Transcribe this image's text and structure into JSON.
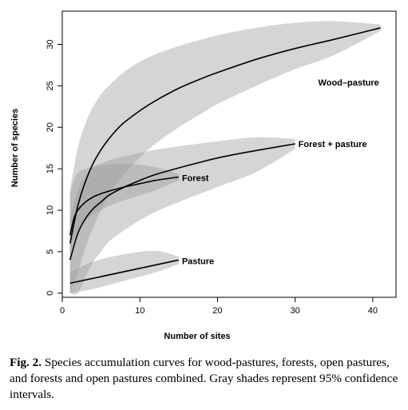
{
  "chart_data": {
    "type": "line",
    "xlabel": "Number of sites",
    "ylabel": "Number of species",
    "xlim": [
      0,
      43
    ],
    "ylim": [
      -0.5,
      34
    ],
    "xticks": [
      0,
      10,
      20,
      30,
      40
    ],
    "yticks": [
      0,
      5,
      10,
      15,
      20,
      25,
      30
    ],
    "grid": false,
    "legend": "none",
    "series": [
      {
        "name": "Wood–pasture",
        "x": [
          1,
          2,
          3,
          4,
          5,
          6,
          7,
          8,
          10,
          12,
          15,
          18,
          20,
          25,
          30,
          35,
          41
        ],
        "y": [
          6,
          10.5,
          13.5,
          15.7,
          17.3,
          18.6,
          19.7,
          20.6,
          22.0,
          23.2,
          24.7,
          25.9,
          26.6,
          28.2,
          29.5,
          30.6,
          32
        ],
        "ci_lower": [
          0,
          2.5,
          5.5,
          8.0,
          10.0,
          11.8,
          13.2,
          14.4,
          16.4,
          18.0,
          20.0,
          21.7,
          22.8,
          25.0,
          27.0,
          28.7,
          31.6
        ],
        "ci_upper": [
          12.5,
          17.5,
          20.5,
          22.5,
          24.0,
          25.0,
          25.9,
          26.7,
          27.9,
          28.8,
          29.8,
          30.6,
          31.1,
          32.0,
          32.6,
          32.8,
          32.4
        ]
      },
      {
        "name": "Forest + pasture",
        "x": [
          1,
          2,
          3,
          4,
          5,
          6,
          8,
          10,
          12,
          15,
          20,
          25,
          30
        ],
        "y": [
          4,
          7.2,
          9.0,
          10.2,
          11.0,
          11.8,
          12.8,
          13.6,
          14.3,
          15.1,
          16.3,
          17.2,
          18
        ],
        "ci_lower": [
          0,
          0,
          2.0,
          3.8,
          5.0,
          6.2,
          7.6,
          8.8,
          9.8,
          11.0,
          12.8,
          14.6,
          17.4
        ],
        "ci_upper": [
          9.0,
          12.5,
          14.2,
          15.2,
          15.6,
          16.0,
          16.5,
          16.9,
          17.3,
          17.7,
          18.3,
          18.8,
          18.6
        ]
      },
      {
        "name": "Forest",
        "x": [
          1,
          1.5,
          2,
          3,
          4,
          5,
          6,
          8,
          10,
          12,
          15
        ],
        "y": [
          7,
          9.0,
          10.0,
          11.0,
          11.6,
          12.0,
          12.3,
          12.8,
          13.2,
          13.6,
          14.0
        ],
        "ci_lower": [
          5.0,
          6.5,
          7.5,
          8.8,
          9.5,
          10.0,
          10.5,
          11.2,
          11.8,
          12.4,
          13.6
        ],
        "ci_upper": [
          12.0,
          13.6,
          14.5,
          15.0,
          15.2,
          15.4,
          15.5,
          15.6,
          15.5,
          15.2,
          14.4
        ]
      },
      {
        "name": "Pasture",
        "x": [
          1,
          15
        ],
        "y": [
          1.2,
          4.0
        ],
        "ci_lower": [
          0,
          0.5,
          1.5,
          2.5,
          3.5
        ],
        "ci_upper": [
          2.5,
          3.8,
          4.7,
          5.1,
          4.4
        ],
        "ci_x": [
          1,
          4,
          8,
          12,
          15
        ]
      }
    ]
  },
  "caption": {
    "fig_label": "Fig. 2.",
    "text": "Species accumulation curves for wood-pastures, forests, open pastures, and forests and open pastures combined. Gray shades represent 95% confidence intervals."
  },
  "colors": {
    "ci_fill": "#9a9a9a",
    "line": "#000000"
  }
}
